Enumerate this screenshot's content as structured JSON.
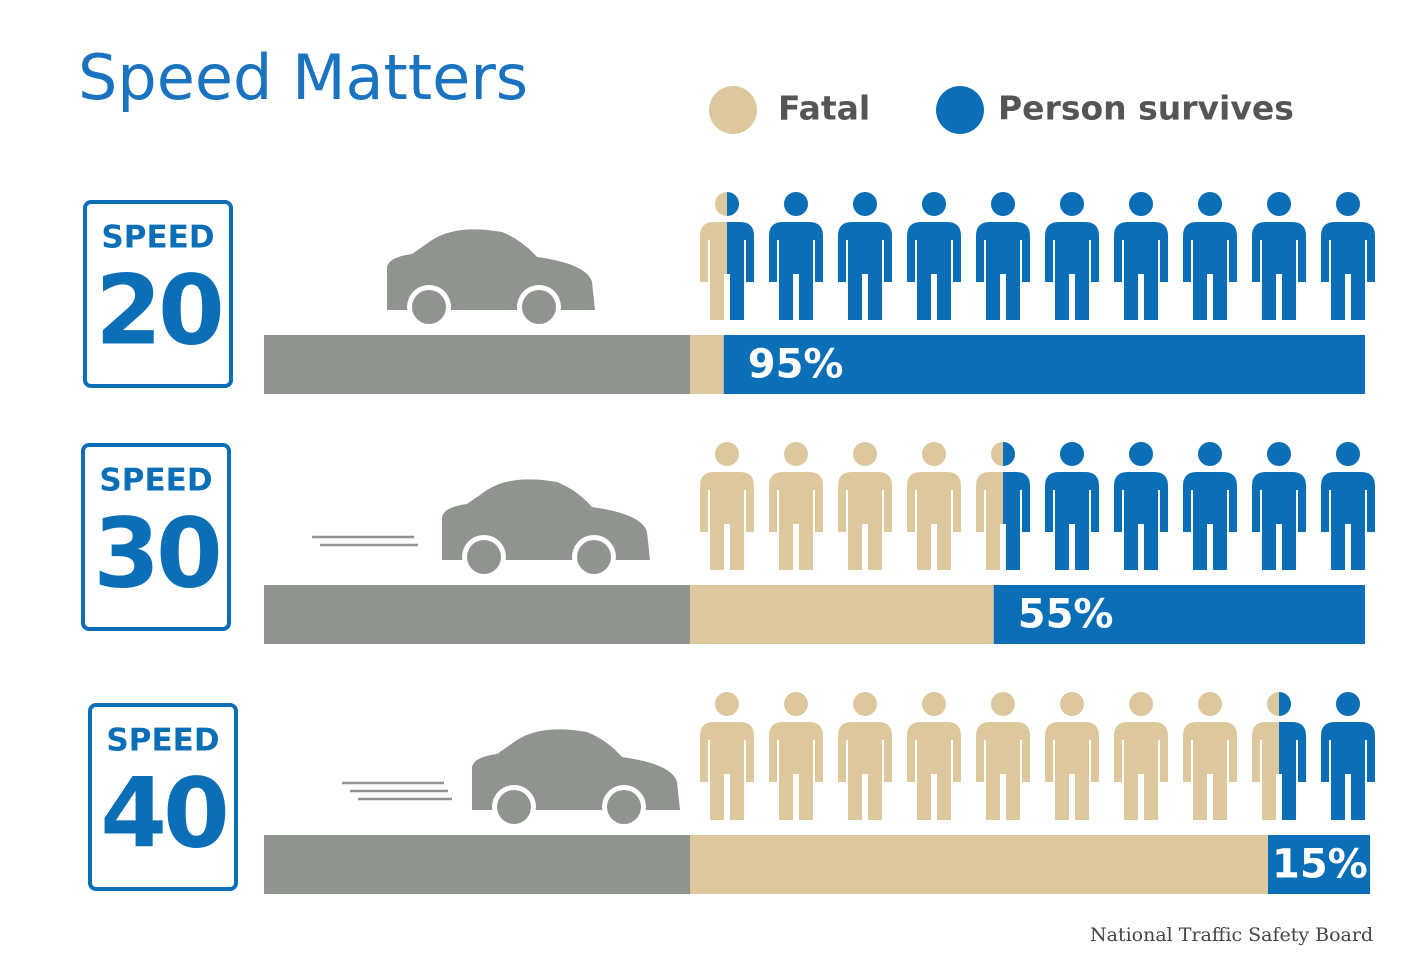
{
  "chart_data": {
    "type": "bar",
    "title": "Speed Matters",
    "legend": [
      {
        "name": "Fatal",
        "color": "#dcc89c"
      },
      {
        "name": "Person survives",
        "color": "#0b6fb8"
      }
    ],
    "sign_text": "SPEED",
    "categories": [
      "20",
      "30",
      "40"
    ],
    "values": [
      95,
      55,
      15
    ],
    "value_labels": [
      "95%",
      "55%",
      "15%"
    ],
    "source": "National Traffic Safety Board"
  }
}
